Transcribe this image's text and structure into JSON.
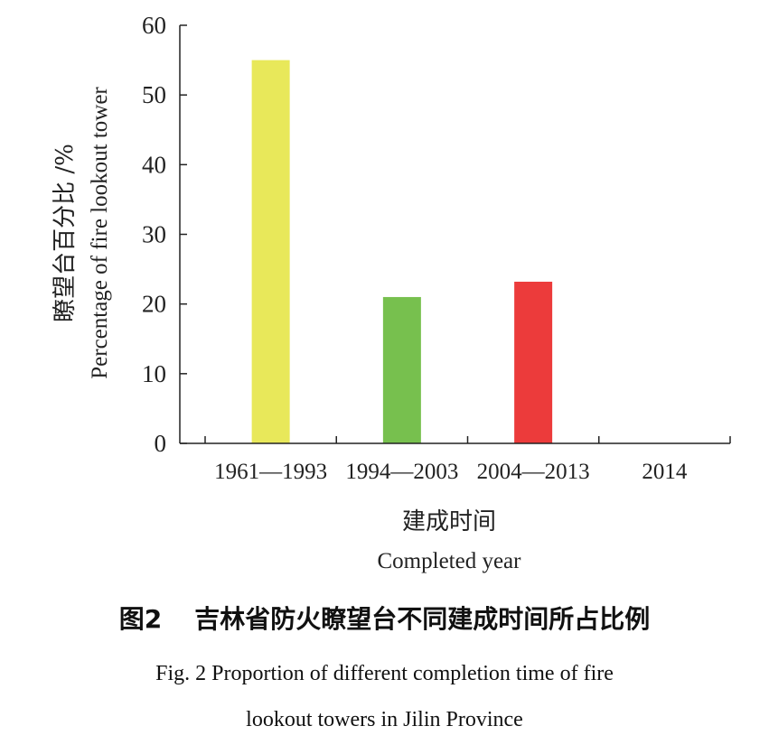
{
  "chart_data": {
    "type": "bar",
    "categories": [
      "1961—1993",
      "1994—2003",
      "2004—2013",
      "2014"
    ],
    "values": [
      55,
      21,
      23.2,
      0
    ],
    "colors": [
      "#e8e85a",
      "#77c04e",
      "#ec3b3b",
      "#ffffff"
    ],
    "ylim": [
      0,
      60
    ],
    "yticks": [
      "0",
      "10",
      "20",
      "30",
      "40",
      "50",
      "60"
    ],
    "ylabel_zh": "瞭望台百分比 /%",
    "ylabel_en": "Percentage of fire lookout tower",
    "xlabel_zh": "建成时间",
    "xlabel_en": "Completed year",
    "grid": false
  },
  "caption": {
    "fig_no_zh": "图2",
    "title_zh": "吉林省防火瞭望台不同建成时间所占比例",
    "title_en_line1": "Fig. 2 Proportion of different completion time of fire",
    "title_en_line2": "lookout towers in Jilin Province"
  }
}
